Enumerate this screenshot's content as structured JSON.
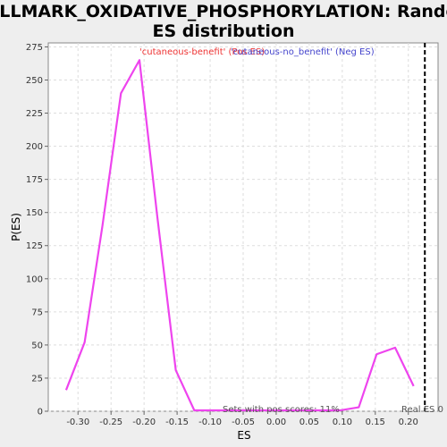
{
  "chart_data": {
    "type": "line",
    "title_line1": "HALLMARK_OXIDATIVE_PHOSPHORYLATION: Random",
    "title_line2": "ES distribution",
    "xlabel": "ES",
    "ylabel": "P(ES)",
    "xlim": [
      -0.345,
      0.245
    ],
    "ylim": [
      0,
      278
    ],
    "x_ticks": [
      -0.3,
      -0.25,
      -0.2,
      -0.15,
      -0.1,
      -0.05,
      0.0,
      0.05,
      0.1,
      0.15,
      0.2
    ],
    "x_tick_labels": [
      "-0.30",
      "-0.25",
      "-0.20",
      "-0.15",
      "-0.10",
      "-0.05",
      "0.00",
      "0.05",
      "0.10",
      "0.15",
      "0.20"
    ],
    "y_ticks": [
      0,
      25,
      50,
      75,
      100,
      125,
      150,
      175,
      200,
      225,
      250,
      275
    ],
    "y_tick_labels": [
      "0",
      "25",
      "50",
      "75",
      "100",
      "125",
      "150",
      "175",
      "200",
      "225",
      "250",
      "275"
    ],
    "grid": true,
    "series": [
      {
        "color": "#ee44ee",
        "x": [
          -0.318,
          -0.29,
          -0.263,
          -0.235,
          -0.207,
          -0.18,
          -0.152,
          -0.124,
          -0.097,
          -0.069,
          -0.041,
          -0.014,
          0.014,
          0.042,
          0.069,
          0.097,
          0.125,
          0.152,
          0.18,
          0.208
        ],
        "y": [
          16,
          52,
          140,
          240,
          265,
          147,
          31,
          0,
          0,
          0,
          0,
          0,
          0,
          0,
          0,
          0,
          3,
          43,
          48,
          19
        ]
      }
    ],
    "legend": {
      "placement": "top-center",
      "pos_label": "'cutaneous-benefit' (Pos ES)",
      "pos_color": "#ee3333",
      "neg_label": "'cutaneous-no_benefit' (Neg ES)",
      "neg_color": "#4444cc"
    },
    "real_es": {
      "value": 0.225,
      "label": "Real ES 0"
    },
    "annotation": "Sets with pos scores: 11%"
  }
}
